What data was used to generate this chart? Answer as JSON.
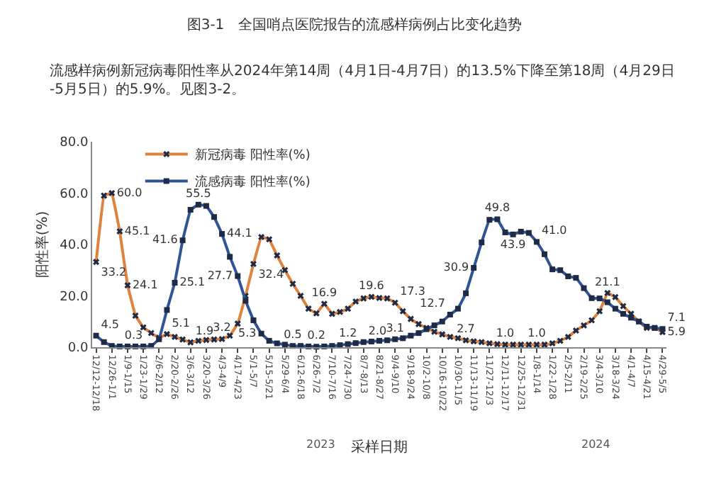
{
  "chart_data": {
    "type": "line",
    "title": "图3-1　全国哨点医院报告的流感样病例占比变化趋势",
    "subtitle": "流感样病例新冠病毒阳性率从2024年第14周（4月1日-4月7日）的13.5%下降至第18周（4月29日-5月5日）的5.9%。见图3-2。",
    "xlabel": "采样日期",
    "ylabel": "阳性率(%)",
    "annotations": [
      "2023",
      "2024"
    ],
    "categories": [
      "12/12-12/18",
      null,
      "12/26-1/1",
      null,
      "1/9-1/15",
      null,
      "1/23-1/29",
      null,
      "2/6-2/12",
      null,
      "2/20-2/26",
      null,
      "3/6-3/12",
      null,
      "3/20-3/26",
      null,
      "4/3-4/9",
      null,
      "4/17-4/23",
      null,
      "5/1-5/7",
      null,
      "5/15-5/21",
      null,
      "5/29-6/4",
      null,
      "6/12-6/18",
      null,
      "6/26-7/2",
      null,
      "7/10-7/16",
      null,
      "7/24-7/30",
      null,
      "8/7-8/13",
      null,
      "8/21-8/27",
      null,
      "9/4-9/10",
      null,
      "9/18-9/24",
      null,
      "10/2-10/8",
      null,
      "10/16-10/22",
      null,
      "10/30-11/5",
      null,
      "11/13-11/19",
      null,
      "11/27-12/3",
      null,
      "12/11-12/17",
      null,
      "12/25-12/31",
      null,
      "1/8-1/14",
      null,
      "1/22-1/28",
      null,
      "2/5-2/11",
      null,
      "2/19-2/25",
      null,
      "3/4-3/10",
      null,
      "3/18-3/24",
      null,
      "4/1-4/7",
      null,
      "4/15-4/21",
      null,
      "4/29-5/5"
    ],
    "series": [
      {
        "name": "新冠病毒 阳性率(%)",
        "color": "#e0823d",
        "marker": "cross",
        "values": [
          33.2,
          59,
          60.0,
          45.1,
          24.1,
          12.3,
          7.7,
          5.5,
          3.7,
          5.1,
          4,
          3,
          1.9,
          2.5,
          2.8,
          3,
          3.2,
          4.5,
          9.2,
          20,
          32.4,
          42.9,
          42,
          35.7,
          30,
          24.7,
          20,
          15,
          13.2,
          16.9,
          13,
          13.7,
          15,
          17.8,
          19,
          19.6,
          19.2,
          19,
          17.3,
          14,
          11,
          9,
          7.5,
          6,
          5,
          4,
          3.5,
          2.7,
          2.3,
          2,
          1.5,
          1.2,
          1.0,
          1.0,
          1.0,
          1.0,
          1.0,
          1.0,
          1.5,
          2.5,
          4,
          6.5,
          8.5,
          10.5,
          14,
          21.1,
          19.5,
          16,
          13,
          10,
          7.5,
          7.5,
          5.9
        ],
        "value_labels": [
          "33.2",
          null,
          "60.0",
          "45.1",
          "24.1",
          null,
          null,
          null,
          null,
          "5.1",
          null,
          null,
          "1.9",
          null,
          null,
          null,
          "3.2",
          null,
          null,
          null,
          "32.4",
          null,
          null,
          null,
          null,
          null,
          null,
          null,
          null,
          "16.9",
          null,
          null,
          null,
          null,
          null,
          "19.6",
          null,
          null,
          "17.3",
          null,
          null,
          null,
          null,
          null,
          null,
          null,
          null,
          "2.7",
          null,
          null,
          null,
          null,
          "1.0",
          null,
          null,
          null,
          "1.0",
          null,
          null,
          null,
          null,
          null,
          null,
          null,
          null,
          "21.1",
          null,
          null,
          null,
          null,
          null,
          null,
          "5.9"
        ]
      },
      {
        "name": "流感病毒 阳性率(%)",
        "color": "#2f5597",
        "marker": "square",
        "values": [
          4.5,
          2,
          0.5,
          0.3,
          0.3,
          0.3,
          0.3,
          0.5,
          3.1,
          14.5,
          25.1,
          41.6,
          53.5,
          55.5,
          55,
          50.7,
          44.1,
          35.2,
          27.7,
          18.1,
          10.5,
          5.3,
          2.5,
          1.5,
          1,
          0.5,
          0.5,
          0.3,
          0.2,
          0.3,
          0.5,
          0.8,
          1.2,
          1.6,
          2.0,
          2.2,
          2.5,
          2.7,
          3.1,
          3.5,
          4.5,
          5.5,
          7,
          8.5,
          10,
          12.7,
          15,
          21,
          30.9,
          40.8,
          49.6,
          49.8,
          44.7,
          43.9,
          45,
          44.5,
          41.0,
          36.2,
          30.3,
          30,
          27.6,
          27,
          23,
          19.1,
          19,
          17.5,
          15,
          13,
          11.5,
          10,
          8,
          7.5,
          7.1
        ],
        "value_labels": [
          "4.5",
          null,
          null,
          "0.3",
          null,
          null,
          null,
          null,
          null,
          null,
          "25.1",
          "41.6",
          null,
          "55.5",
          null,
          null,
          "44.1",
          null,
          "27.7",
          null,
          null,
          "5.3",
          null,
          null,
          null,
          "0.5",
          null,
          null,
          "0.2",
          null,
          null,
          null,
          "1.2",
          null,
          "2.0",
          null,
          null,
          null,
          "3.1",
          null,
          null,
          null,
          null,
          null,
          null,
          "12.7",
          null,
          null,
          "30.9",
          null,
          null,
          "49.8",
          null,
          "43.9",
          null,
          null,
          "41.0",
          null,
          null,
          null,
          null,
          null,
          null,
          null,
          null,
          null,
          null,
          null,
          null,
          null,
          null,
          null,
          "7.1"
        ]
      }
    ],
    "ylim": [
      0,
      80
    ],
    "yticks": [
      {
        "value": 0,
        "label": "0.0"
      },
      {
        "value": 20,
        "label": "20.0"
      },
      {
        "value": 40,
        "label": "40.0"
      },
      {
        "value": 60,
        "label": "60.0"
      },
      {
        "value": 80,
        "label": "80.0"
      }
    ],
    "grid": false,
    "legend": "top left",
    "line_style": "solid"
  }
}
